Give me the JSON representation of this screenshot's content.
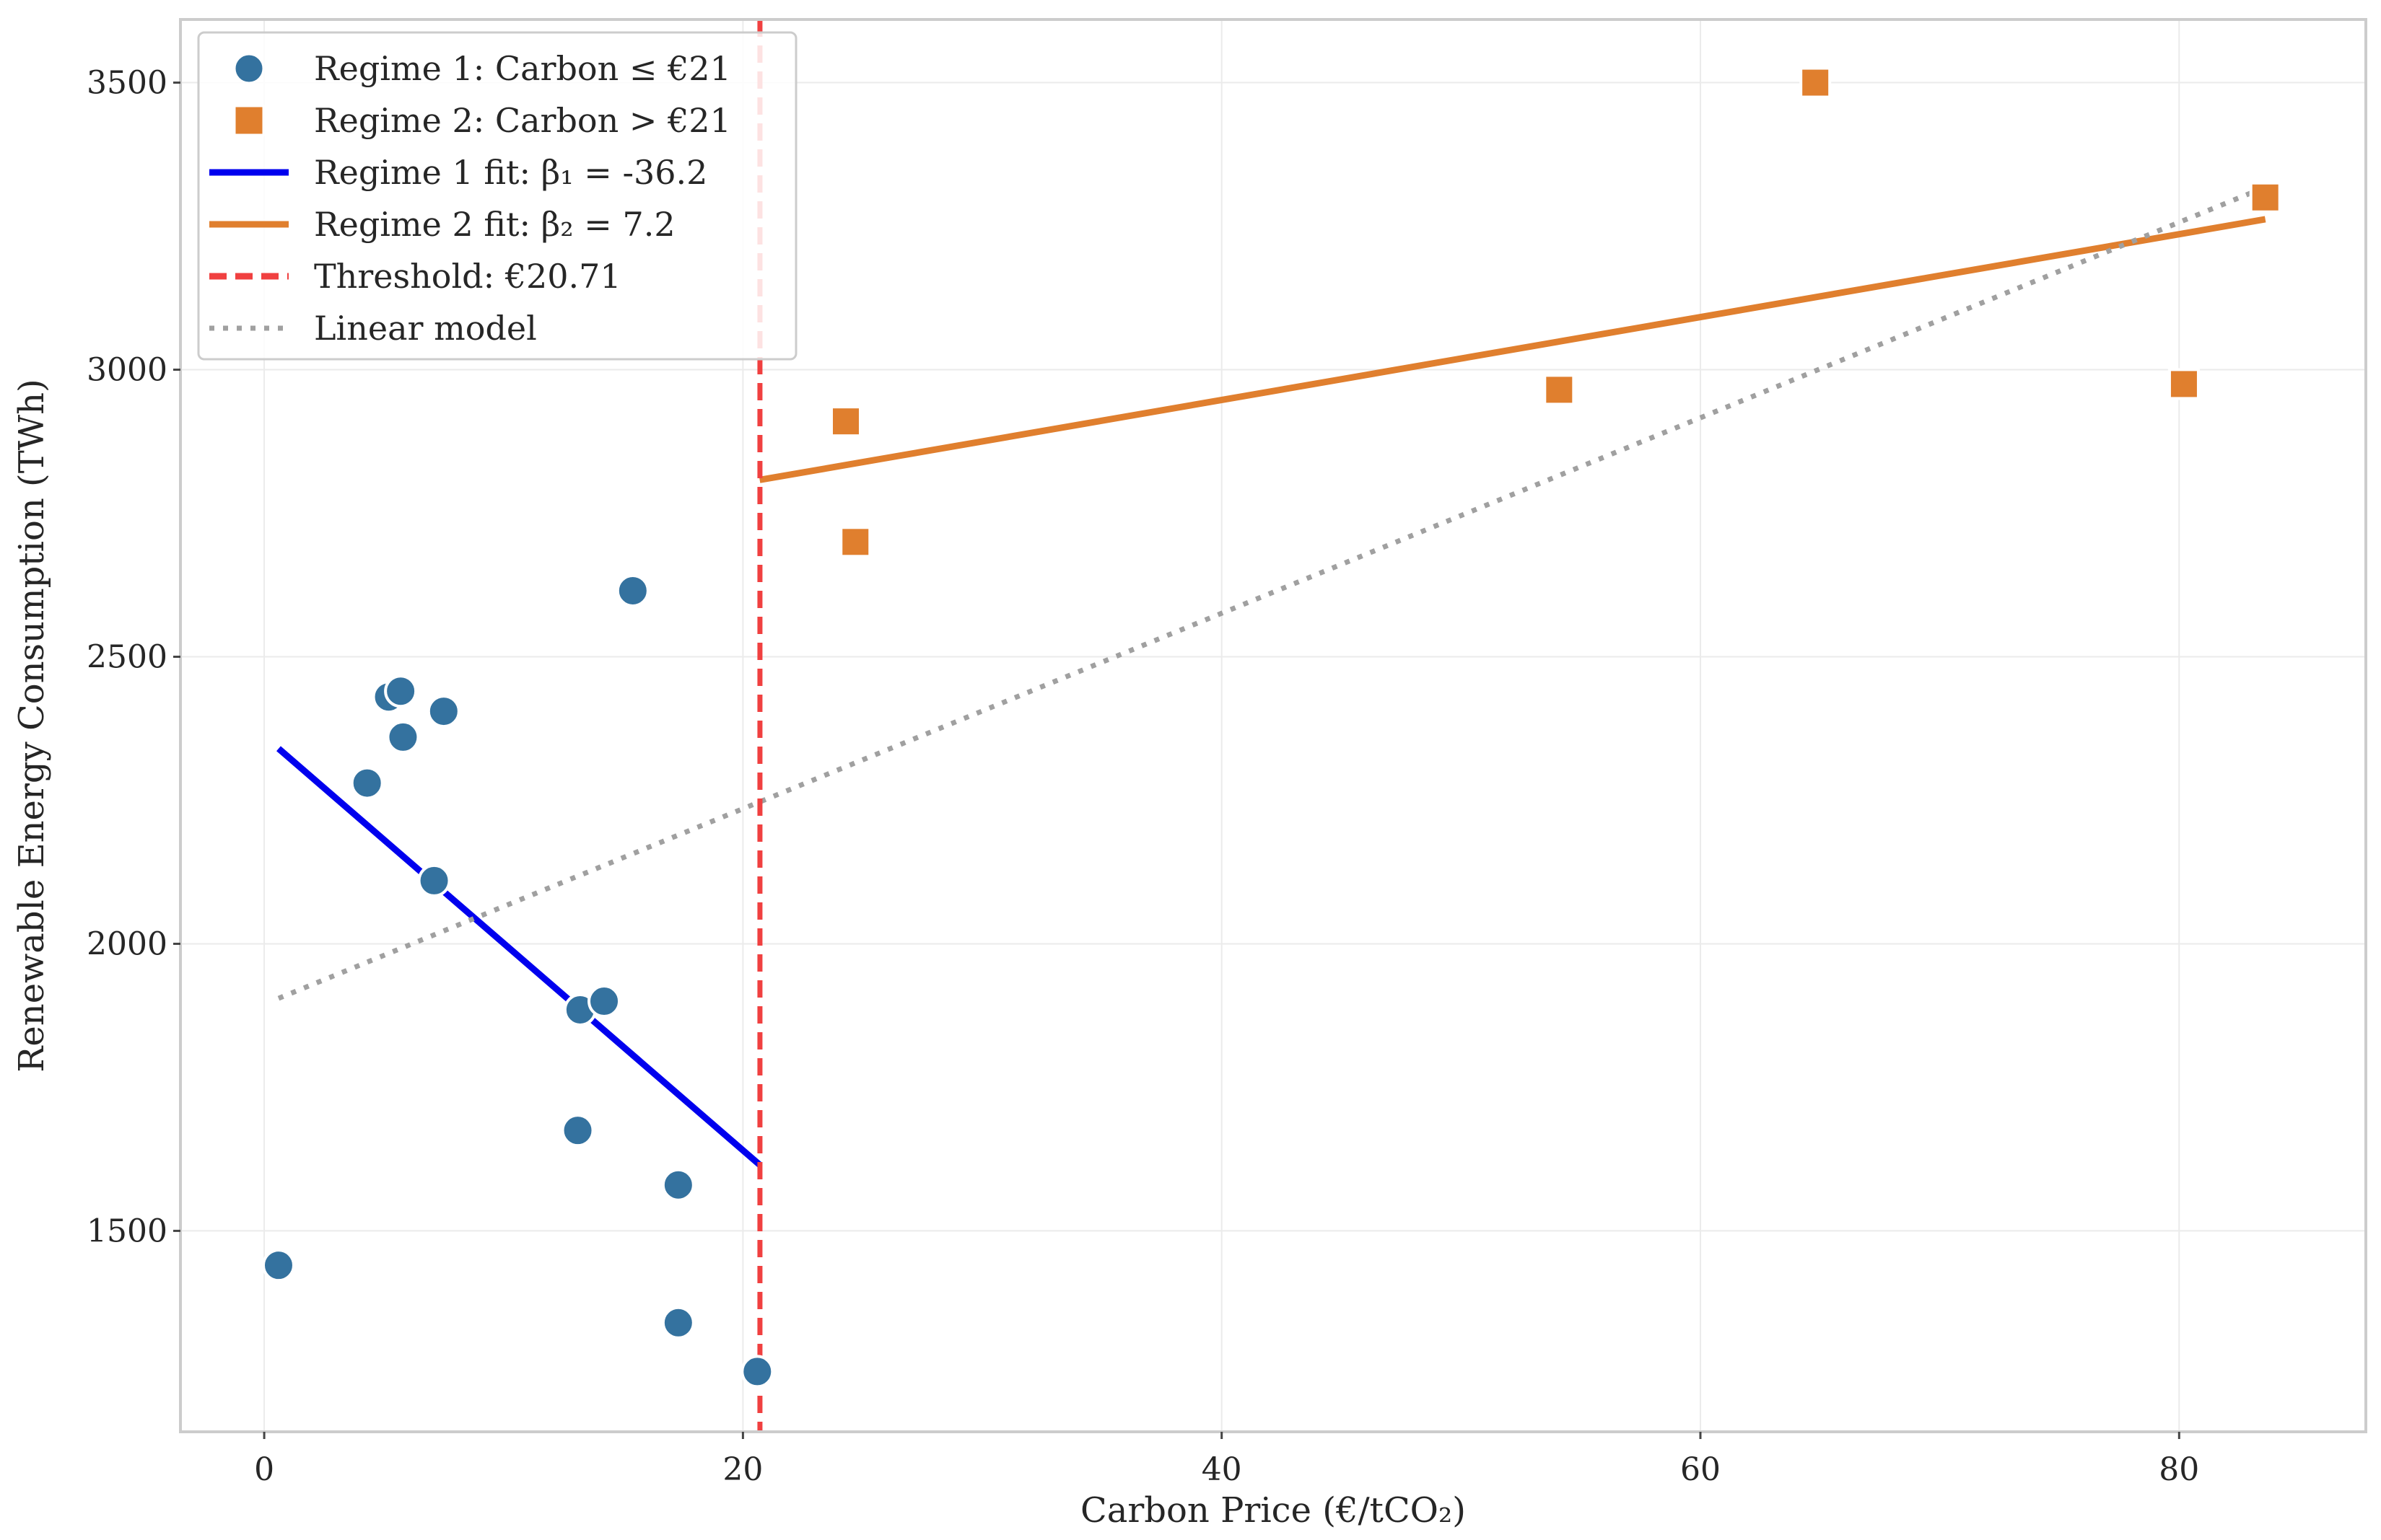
{
  "chart_data": {
    "type": "scatter",
    "title": "",
    "xlabel": "Carbon Price (€/tCO₂)",
    "ylabel": "Renewable Energy Consumption (TWh)",
    "xlim": [
      -3.5,
      87.8
    ],
    "ylim": [
      1150,
      3610
    ],
    "xticks": [
      0,
      20,
      40,
      60,
      80
    ],
    "yticks": [
      1500,
      2000,
      2500,
      3000,
      3500
    ],
    "grid": true,
    "legend_position": "top-left",
    "threshold": 20.71,
    "series": [
      {
        "name": "Regime 1: Carbon ≤ €21",
        "kind": "scatter",
        "marker": "circle",
        "color": "#34729f",
        "x": [
          0.6,
          4.3,
          5.2,
          5.7,
          5.8,
          7.1,
          7.5,
          13.1,
          13.2,
          14.2,
          15.4,
          17.3,
          17.3,
          20.6
        ],
        "y": [
          1440,
          2280,
          2430,
          2440,
          2360,
          2110,
          2405,
          1675,
          1885,
          1900,
          2615,
          1580,
          1340,
          1255
        ]
      },
      {
        "name": "Regime 2: Carbon > €21",
        "kind": "scatter",
        "marker": "square",
        "color": "#e07f2e",
        "x": [
          24.3,
          24.7,
          54.1,
          64.8,
          80.2,
          83.6
        ],
        "y": [
          2910,
          2700,
          2965,
          3500,
          2975,
          3300
        ]
      },
      {
        "name": "Regime 1 fit: β₁ = -36.2",
        "kind": "line",
        "style": "solid",
        "color": "#0000ee",
        "x": [
          0.6,
          20.7
        ],
        "y": [
          2340,
          1615
        ]
      },
      {
        "name": "Regime 2 fit: β₂ = 7.2",
        "kind": "line",
        "style": "solid",
        "color": "#e07f2e",
        "x": [
          20.7,
          83.6
        ],
        "y": [
          2808,
          3262
        ]
      },
      {
        "name": "Threshold: €20.71",
        "kind": "vline",
        "style": "dashed",
        "color": "#f04040",
        "x": [
          20.71
        ]
      },
      {
        "name": "Linear model",
        "kind": "line",
        "style": "dotted",
        "color": "#a0a0a0",
        "x": [
          0.6,
          83.6
        ],
        "y": [
          1905,
          3318
        ]
      }
    ]
  }
}
